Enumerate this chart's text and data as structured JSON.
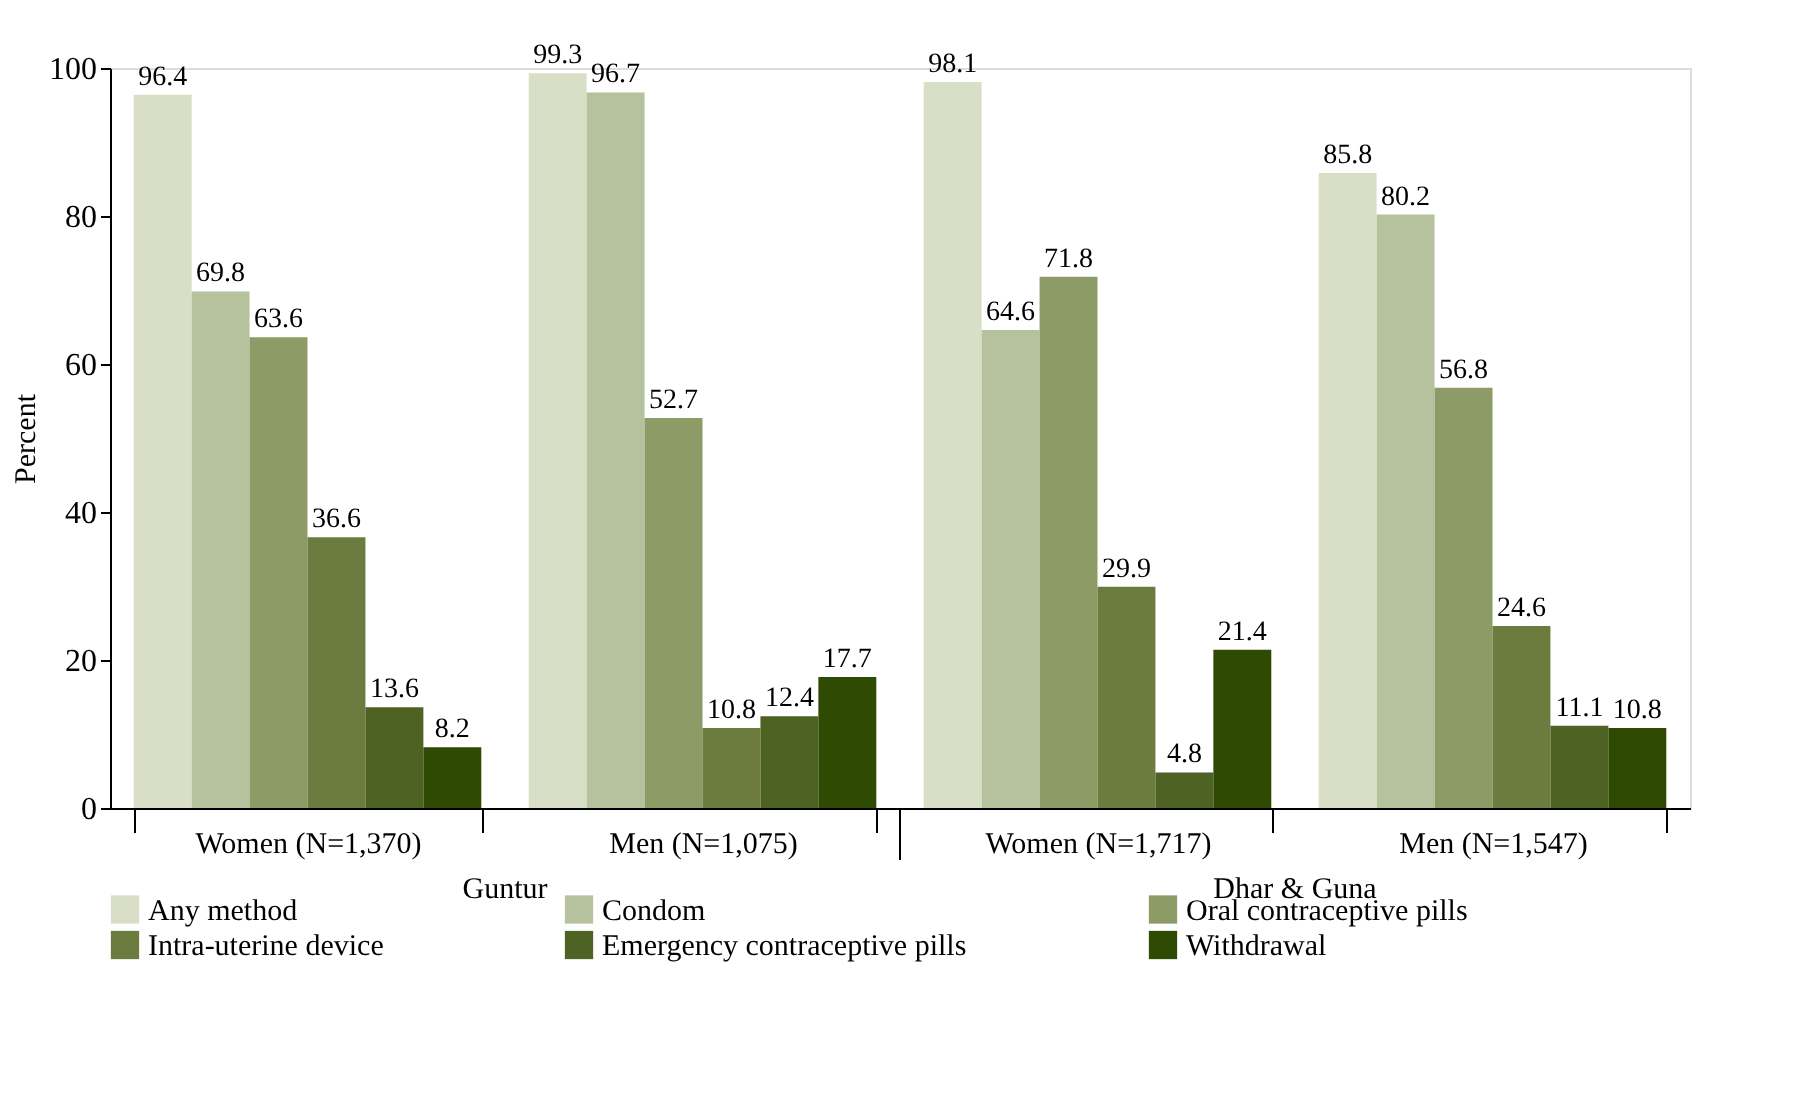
{
  "chart_data": {
    "type": "bar",
    "ylabel": "Percent",
    "categories": [
      "Women (N=1,370)",
      "Men (N=1,075)",
      "Women (N=1,717)",
      "Men (N=1,547)"
    ],
    "series": [
      {
        "name": "Any method",
        "color": "#d9dfc7",
        "values": [
          96.4,
          99.3,
          98.1,
          85.8
        ]
      },
      {
        "name": "Condom",
        "color": "#b6c19d",
        "values": [
          69.8,
          96.7,
          64.6,
          80.2
        ]
      },
      {
        "name": "Oral contraceptive pills",
        "color": "#8d9c66",
        "values": [
          63.6,
          52.7,
          71.8,
          56.8
        ]
      },
      {
        "name": "Intra-uterine device",
        "color": "#6b7c3e",
        "values": [
          36.6,
          10.8,
          29.9,
          24.6
        ]
      },
      {
        "name": "Emergency contraceptive pills",
        "color": "#4e6224",
        "values": [
          13.6,
          12.4,
          4.8,
          11.1
        ]
      },
      {
        "name": "Withdrawal",
        "color": "#2f4a02",
        "values": [
          8.2,
          17.7,
          21.4,
          10.8
        ]
      }
    ],
    "annotations": [
      "Guntur",
      "Dhar & Guna"
    ],
    "ylim": [
      0,
      100
    ],
    "yticks": [
      0,
      20,
      40,
      60,
      80,
      100
    ],
    "grid": false,
    "legend": "bottom",
    "data_labels": true
  }
}
